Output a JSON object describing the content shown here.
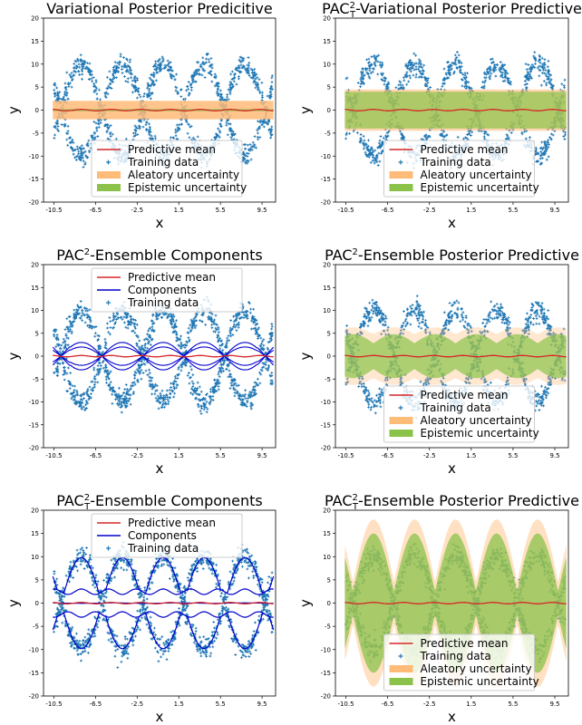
{
  "colors": {
    "training": "#1f77b4",
    "mean": "#d62728",
    "components": "#0000cc",
    "aleatory": "#ffbb78",
    "epistemic": "#8bc34a"
  },
  "axis": {
    "xlabel": "x",
    "ylabel": "y",
    "xticks": [
      "-10.5",
      "-6.5",
      "-2.5",
      "1.5",
      "5.5",
      "9.5"
    ],
    "xtick_values": [
      -10.5,
      -6.5,
      -2.5,
      1.5,
      5.5,
      9.5
    ],
    "yticks": [
      "20",
      "15",
      "10",
      "5",
      "0",
      "-5",
      "-10",
      "-15",
      "-20"
    ],
    "ytick_values": [
      20,
      15,
      10,
      5,
      0,
      -5,
      -10,
      -15,
      -20
    ],
    "xlim": [
      -11.5,
      10.8
    ],
    "ylim": [
      -20,
      20
    ]
  },
  "chart_data": [
    {
      "type": "scatter",
      "title": "Variational Posterior Predicitive",
      "title_sub": "",
      "title_suffix": "",
      "legend_position": "bottom-center",
      "legend": [
        "Predictive mean",
        "Training data",
        "Aleatory uncertainty",
        "Epistemic uncertainty"
      ],
      "training_data": "y = ±10·cos(0.8x) + noise",
      "predictive_mean": 0,
      "aleatory_halfwidth": 2.0,
      "epistemic_halfwidth": 0.2
    },
    {
      "type": "scatter",
      "title": "PAC",
      "title_sub": "T",
      "title_suffix": "-Variational Posterior Predictive",
      "legend_position": "bottom-center",
      "legend": [
        "Predictive mean",
        "Training data",
        "Aleatory uncertainty",
        "Epistemic uncertainty"
      ],
      "training_data": "y = ±10·cos(0.8x) + noise",
      "predictive_mean": 0,
      "aleatory_halfwidth": 4.5,
      "epistemic_halfwidth": 4.0
    },
    {
      "type": "line",
      "title": "PAC",
      "title_sub": "",
      "title_suffix": "-Ensemble Components",
      "legend_position": "top-center",
      "legend": [
        "Predictive mean",
        "Components",
        "Training data"
      ],
      "training_data": "y = ±10·cos(0.8x) + noise",
      "predictive_mean": 0,
      "components": "small oscillations around 0, amplitude ≈ 2–3"
    },
    {
      "type": "scatter",
      "title": "PAC",
      "title_sub": "",
      "title_suffix": "-Ensemble Posterior Predictive",
      "legend_position": "bottom-center",
      "legend": [
        "Predictive mean",
        "Training data",
        "Aleatory uncertainty",
        "Epistemic uncertainty"
      ],
      "training_data": "y = ±10·cos(0.8x) + noise",
      "predictive_mean": 0,
      "aleatory_halfwidth": 6.0,
      "epistemic_halfwidth": 4.0
    },
    {
      "type": "line",
      "title": "PAC",
      "title_sub": "T",
      "title_suffix": "-Ensemble Components",
      "legend_position": "top-center",
      "legend": [
        "Predictive mean",
        "Components",
        "Training data"
      ],
      "training_data": "y = ±10·cos(0.8x) + noise",
      "predictive_mean": 0,
      "components": "components fit upper and lower data branches"
    },
    {
      "type": "scatter",
      "title": "PAC",
      "title_sub": "T",
      "title_suffix": "-Ensemble Posterior Predictive",
      "legend_position": "bottom-center",
      "legend": [
        "Predictive mean",
        "Training data",
        "Aleatory uncertainty",
        "Epistemic uncertainty"
      ],
      "training_data": "y = ±10·cos(0.8x) + noise",
      "predictive_mean": 0,
      "aleatory_halfwidth": "≈ 16 at edges, ≈ 4 at crossings",
      "epistemic_halfwidth": "≈ 14 at edges, ≈ 3 at crossings"
    }
  ]
}
